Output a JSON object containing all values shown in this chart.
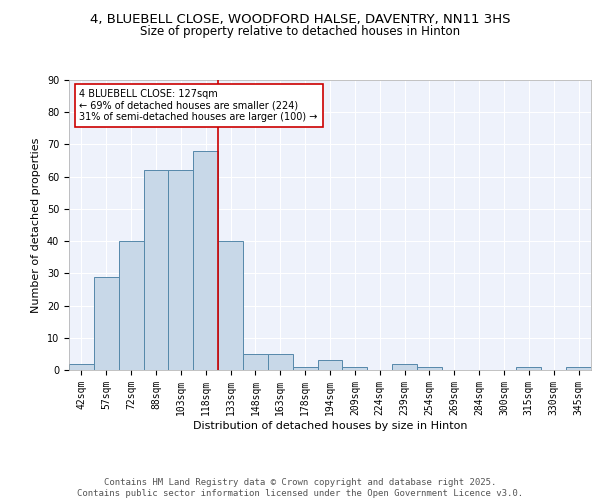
{
  "title": "4, BLUEBELL CLOSE, WOODFORD HALSE, DAVENTRY, NN11 3HS",
  "subtitle": "Size of property relative to detached houses in Hinton",
  "xlabel": "Distribution of detached houses by size in Hinton",
  "ylabel": "Number of detached properties",
  "bins": [
    "42sqm",
    "57sqm",
    "72sqm",
    "88sqm",
    "103sqm",
    "118sqm",
    "133sqm",
    "148sqm",
    "163sqm",
    "178sqm",
    "194sqm",
    "209sqm",
    "224sqm",
    "239sqm",
    "254sqm",
    "269sqm",
    "284sqm",
    "300sqm",
    "315sqm",
    "330sqm",
    "345sqm"
  ],
  "values": [
    2,
    29,
    40,
    62,
    62,
    68,
    40,
    5,
    5,
    1,
    3,
    1,
    0,
    2,
    1,
    0,
    0,
    0,
    1,
    0,
    1
  ],
  "bar_color": "#c8d8e8",
  "bar_edge_color": "#5588aa",
  "vline_color": "#cc0000",
  "annotation_text": "4 BLUEBELL CLOSE: 127sqm\n← 69% of detached houses are smaller (224)\n31% of semi-detached houses are larger (100) →",
  "annotation_box_color": "#ffffff",
  "annotation_box_edge": "#cc0000",
  "ylim": [
    0,
    90
  ],
  "yticks": [
    0,
    10,
    20,
    30,
    40,
    50,
    60,
    70,
    80,
    90
  ],
  "background_color": "#eef2fb",
  "grid_color": "#ffffff",
  "footer": "Contains HM Land Registry data © Crown copyright and database right 2025.\nContains public sector information licensed under the Open Government Licence v3.0.",
  "title_fontsize": 9.5,
  "subtitle_fontsize": 8.5,
  "label_fontsize": 8,
  "tick_fontsize": 7,
  "footer_fontsize": 6.5,
  "annotation_fontsize": 7
}
